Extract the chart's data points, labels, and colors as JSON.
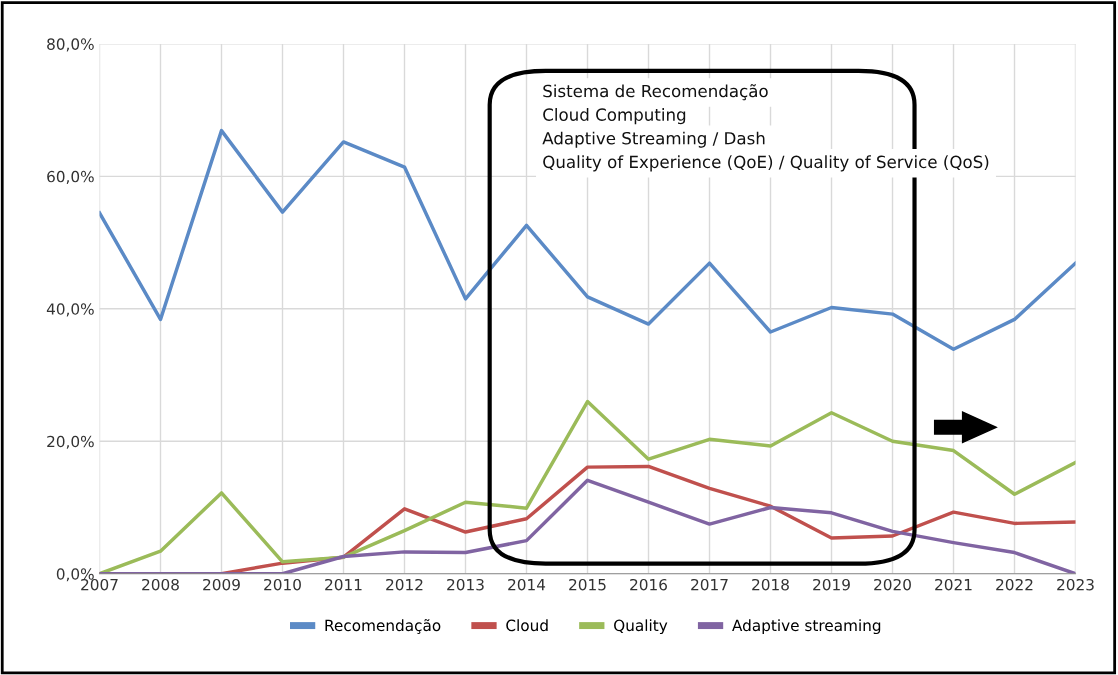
{
  "chart_data": {
    "type": "line",
    "x": [
      2007,
      2008,
      2009,
      2010,
      2011,
      2012,
      2013,
      2014,
      2015,
      2016,
      2017,
      2018,
      2019,
      2020,
      2021,
      2022,
      2023
    ],
    "series": [
      {
        "name": "Recomendação",
        "color": "#5b8ac6",
        "values": [
          54.5,
          38.4,
          66.9,
          54.6,
          65.2,
          61.4,
          41.5,
          52.6,
          41.8,
          37.7,
          46.9,
          36.5,
          40.2,
          39.2,
          33.9,
          38.4,
          46.9
        ]
      },
      {
        "name": "Cloud",
        "color": "#c0504d",
        "values": [
          0,
          0,
          0,
          1.6,
          2.5,
          9.8,
          6.3,
          8.3,
          16.1,
          16.2,
          12.9,
          10.2,
          5.4,
          5.7,
          9.3,
          7.6,
          7.8
        ]
      },
      {
        "name": "Quality",
        "color": "#9bbb59",
        "values": [
          0,
          3.4,
          12.2,
          1.8,
          2.5,
          6.5,
          10.8,
          9.9,
          26.0,
          17.3,
          20.3,
          19.3,
          24.3,
          20.0,
          18.6,
          12.0,
          16.8
        ]
      },
      {
        "name": "Adaptive streaming",
        "color": "#8064a2",
        "values": [
          0,
          0,
          0,
          0,
          2.6,
          3.3,
          3.2,
          5.0,
          14.1,
          10.8,
          7.5,
          10.0,
          9.2,
          6.4,
          4.7,
          3.2,
          0
        ]
      }
    ],
    "xlim": [
      2007,
      2023
    ],
    "xticks": [
      2007,
      2008,
      2009,
      2010,
      2011,
      2012,
      2013,
      2014,
      2015,
      2016,
      2017,
      2018,
      2019,
      2020,
      2021,
      2022,
      2023
    ],
    "ylim": [
      0,
      80
    ],
    "yticks": [
      {
        "value": 0,
        "label": "0,0%"
      },
      {
        "value": 20,
        "label": "20,0%"
      },
      {
        "value": 40,
        "label": "40,0%"
      },
      {
        "value": 60,
        "label": "60,0%"
      },
      {
        "value": 80,
        "label": "80,0%"
      }
    ],
    "grid": true,
    "legend": "bottom",
    "marker": "none",
    "line_style": "solid",
    "annotations": [
      "Sistema de Recomendação",
      "Cloud Computing",
      "Adaptive Streaming / Dash",
      "Quality of Experience (QoE) / Quality of Service (QoS)"
    ]
  }
}
